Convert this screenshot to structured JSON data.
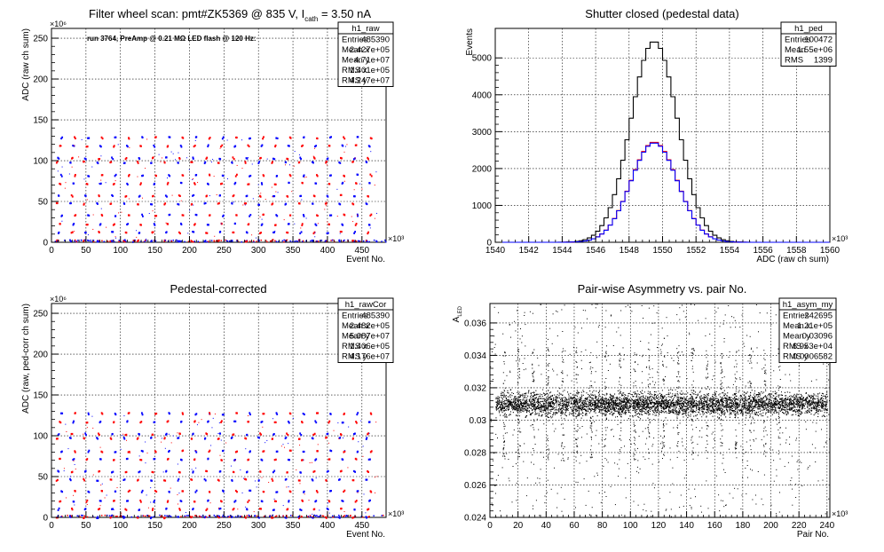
{
  "chart_data": [
    {
      "id": "raw",
      "type": "scatter",
      "title": "Filter wheel scan: pmt#ZK5369 @   835 V, I",
      "title_sub": "cath",
      "title_tail": " = 3.50 nA",
      "subtitle": "run 3764, PreAmp @ 0.21 MΩ LED flash @  120 Hz:",
      "xlabel": "Event No.",
      "ylabel": "ADC (raw ch sum)",
      "x_exponent": "×10³",
      "y_exponent": "×10⁶",
      "xlim": [
        0,
        485
      ],
      "ylim": [
        0,
        262
      ],
      "xticks": [
        0,
        50,
        100,
        150,
        200,
        250,
        300,
        350,
        400,
        450
      ],
      "yticks": [
        0,
        50,
        100,
        150,
        200,
        250
      ],
      "grid": true,
      "levels": [
        2,
        12,
        22,
        33,
        47,
        57,
        72,
        82,
        98,
        103,
        118,
        128
      ],
      "stats": {
        "name": "h1_raw",
        "rows": [
          [
            "Entries",
            "485390"
          ],
          [
            "Mean x",
            "2.427e+05"
          ],
          [
            "Mean y",
            "4.71e+07"
          ],
          [
            "RMS x",
            "1.401e+05"
          ],
          [
            "RMS y",
            "4.247e+07"
          ]
        ]
      }
    },
    {
      "id": "ped",
      "type": "line",
      "title": "Shutter closed (pedestal data)",
      "xlabel": "ADC (raw ch sum)",
      "ylabel": "Events",
      "x_exponent": "×10³",
      "xlim": [
        1540,
        1560
      ],
      "ylim": [
        0,
        5800
      ],
      "xticks": [
        1540,
        1542,
        1544,
        1546,
        1548,
        1550,
        1552,
        1554,
        1556,
        1558,
        1560
      ],
      "yticks": [
        0,
        1000,
        2000,
        3000,
        4000,
        5000
      ],
      "grid": true,
      "series": [
        {
          "name": "total",
          "color": "#000000",
          "mean": 1549.5,
          "sigma": 1.4,
          "peak": 5450
        },
        {
          "name": "red",
          "color": "#ff0000",
          "mean": 1549.5,
          "sigma": 1.4,
          "peak": 2720
        },
        {
          "name": "blue",
          "color": "#0000ff",
          "mean": 1549.5,
          "sigma": 1.4,
          "peak": 2700
        }
      ],
      "stats": {
        "name": "h1_ped",
        "rows": [
          [
            "Entries",
            "100472"
          ],
          [
            "Mean",
            "1.55e+06"
          ],
          [
            "RMS",
            "1399"
          ]
        ]
      }
    },
    {
      "id": "rawcor",
      "type": "scatter",
      "title": "Pedestal-corrected",
      "xlabel": "Event No.",
      "ylabel": "ADC (raw, ped-corr ch sum)",
      "x_exponent": "×10³",
      "y_exponent": "×10⁶",
      "xlim": [
        0,
        485
      ],
      "ylim": [
        0,
        262
      ],
      "xticks": [
        0,
        50,
        100,
        150,
        200,
        250,
        300,
        350,
        400,
        450
      ],
      "yticks": [
        0,
        50,
        100,
        150,
        200,
        250
      ],
      "grid": true,
      "levels": [
        0,
        10,
        20,
        32,
        46,
        56,
        71,
        81,
        97,
        102,
        117,
        127
      ],
      "stats": {
        "name": "h1_rawCor",
        "rows": [
          [
            "Entries",
            "485390"
          ],
          [
            "Mean x",
            "2.482e+05"
          ],
          [
            "Mean y",
            "5.087e+07"
          ],
          [
            "RMS x",
            "1.406e+05"
          ],
          [
            "RMS y",
            "4.176e+07"
          ]
        ]
      }
    },
    {
      "id": "asym",
      "type": "scatter",
      "title": "Pair-wise Asymmetry vs. pair No.",
      "xlabel": "Pair No.",
      "ylabel": "A",
      "ylabel_sub": "LED",
      "x_exponent": "×10³",
      "xlim": [
        0,
        242
      ],
      "ylim": [
        0.024,
        0.0372
      ],
      "xticks": [
        0,
        20,
        40,
        60,
        80,
        100,
        120,
        140,
        160,
        180,
        200,
        220,
        240
      ],
      "yticks": [
        0.024,
        0.026,
        0.028,
        0.03,
        0.032,
        0.034,
        0.036
      ],
      "ytick_labels": [
        "0.024",
        "0.026",
        "0.028",
        "0.03",
        "0.032",
        "0.034",
        "0.036"
      ],
      "grid": true,
      "band_center": 0.031,
      "band_halfwidth": 0.0006,
      "stats": {
        "name": "h1_asym_my",
        "rows": [
          [
            "Entries",
            "242695"
          ],
          [
            "Mean x",
            "1.21e+05"
          ],
          [
            "Mean y",
            "0.03096"
          ],
          [
            "RMS x",
            "6.953e+04"
          ],
          [
            "RMS y",
            "0.0006582"
          ]
        ]
      }
    }
  ]
}
